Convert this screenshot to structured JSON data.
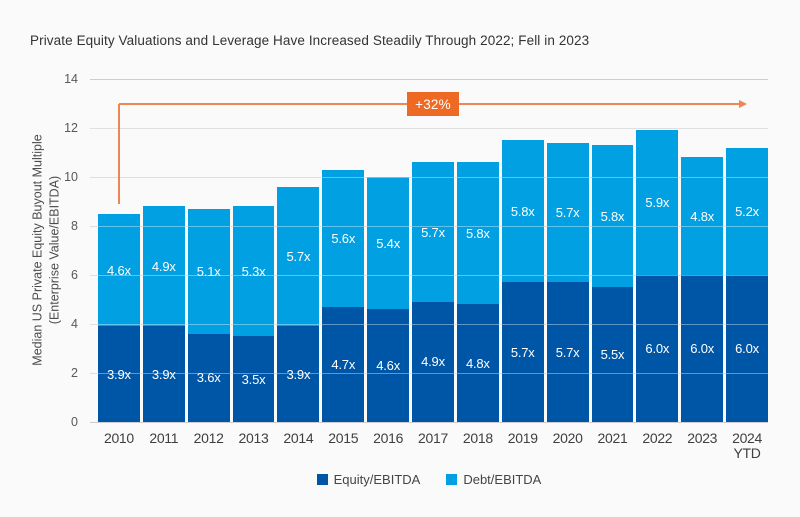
{
  "chart_data": {
    "type": "bar",
    "stacked": true,
    "title": "Private Equity Valuations and Leverage Have Increased Steadily Through 2022; Fell in 2023",
    "categories": [
      "2010",
      "2011",
      "2012",
      "2013",
      "2014",
      "2015",
      "2016",
      "2017",
      "2018",
      "2019",
      "2020",
      "2021",
      "2022",
      "2023",
      "2024 YTD"
    ],
    "series": [
      {
        "name": "Equity/EBITDA",
        "color": "#0056A6",
        "values": [
          3.9,
          3.9,
          3.6,
          3.5,
          3.9,
          4.7,
          4.6,
          4.9,
          4.8,
          5.7,
          5.7,
          5.5,
          6.0,
          6.0,
          6.0
        ]
      },
      {
        "name": "Debt/EBITDA",
        "color": "#00A0E2",
        "values": [
          4.6,
          4.9,
          5.1,
          5.3,
          5.7,
          5.6,
          5.4,
          5.7,
          5.8,
          5.8,
          5.7,
          5.8,
          5.9,
          4.8,
          5.2
        ]
      }
    ],
    "value_label_suffix": "x",
    "ylabel_lines": [
      "Median US Private Equity Buyout Multiple",
      "(Enterprise Value/EBITDA)"
    ],
    "ylim": [
      0,
      14
    ],
    "ytick_step": 2,
    "grid": true,
    "legend_position": "bottom",
    "annotation": {
      "text": "+32%",
      "from_category": "2010",
      "to_category": "2024 YTD",
      "box_color": "#EE6A24",
      "line_color": "#EF8455"
    }
  }
}
